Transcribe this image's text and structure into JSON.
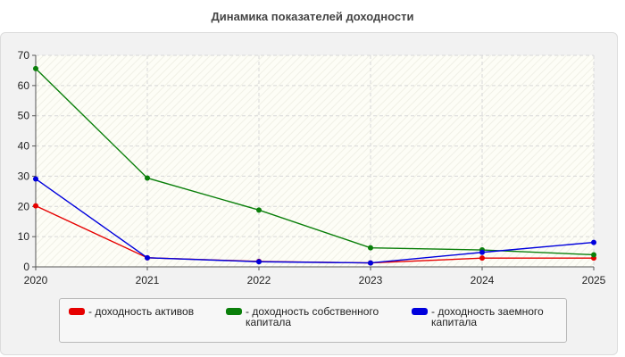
{
  "chart_data": {
    "type": "line",
    "title": "Динамика показателей доходности",
    "xlabel": "",
    "ylabel": "",
    "categories": [
      "2020",
      "2021",
      "2022",
      "2023",
      "2024",
      "2025"
    ],
    "ylim": [
      0,
      70
    ],
    "yticks": [
      "0",
      "10",
      "20",
      "30",
      "40",
      "50",
      "60",
      "70"
    ],
    "grid": true,
    "legend_position": "bottom",
    "series": [
      {
        "name": "- доходность активов",
        "color": "#e60000",
        "values": [
          20.2,
          3.0,
          1.8,
          1.3,
          2.9,
          2.9
        ]
      },
      {
        "name": "- доходность собственного капитала",
        "color": "#0a7f0a",
        "values": [
          65.6,
          29.4,
          18.8,
          6.3,
          5.6,
          4.0
        ]
      },
      {
        "name": "- доходность заемного капитала",
        "color": "#0000dd",
        "values": [
          29.1,
          3.0,
          1.7,
          1.3,
          4.8,
          8.1
        ]
      }
    ]
  }
}
